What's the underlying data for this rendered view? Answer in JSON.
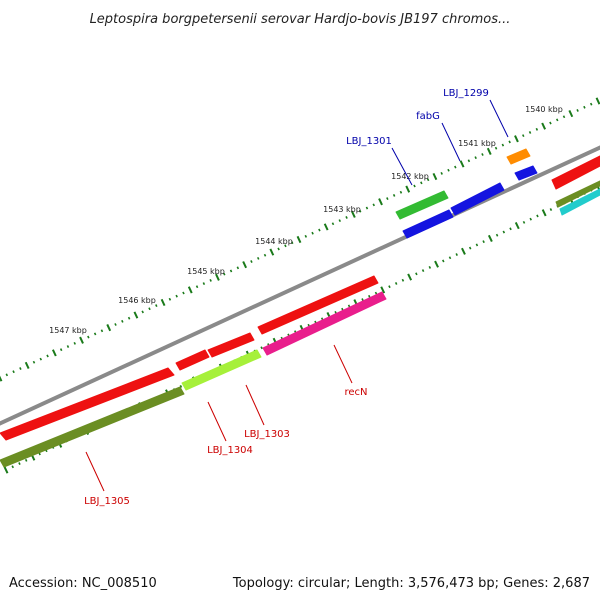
{
  "title": "Leptospira borgpetersenii serovar Hardjo-bovis JB197 chromos...",
  "footer": {
    "accession": "Accession: NC_008510",
    "summary": "Topology: circular; Length: 3,576,473 bp; Genes: 2,687"
  },
  "ruler_labels": [
    "1540 kbp",
    "1541 kbp",
    "1542 kbp",
    "1543 kbp",
    "1544 kbp",
    "1545 kbp",
    "1546 kbp",
    "1547 kbp"
  ],
  "gene_labels": {
    "forward": [
      "LBJ_1299",
      "fabG",
      "LBJ_1301"
    ],
    "reverse": [
      "recN",
      "LBJ_1303",
      "LBJ_1304",
      "LBJ_1305"
    ]
  },
  "colors": {
    "backbone": "#8a8a8a",
    "tick": "#1a7a1a",
    "forward_label": "#0000aa",
    "reverse_label": "#cc0000",
    "red": "#ee1111",
    "olive": "#6b8e23",
    "lime": "#a6f03a",
    "magenta": "#e91e8c",
    "green": "#33bb33",
    "blue": "#1414e0",
    "orange": "#ff8c00",
    "cyan": "#22cccc"
  }
}
